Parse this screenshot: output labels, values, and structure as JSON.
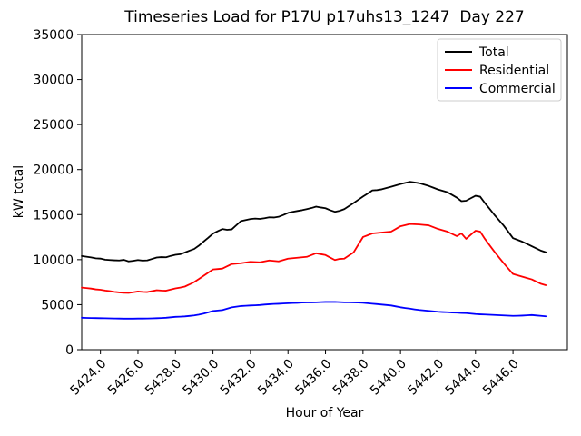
{
  "title": "Timeseries Load for P17U p17uhs13_1247  Day 227",
  "chart_data": {
    "type": "line",
    "title": "Timeseries Load for P17U p17uhs13_1247  Day 227",
    "xlabel": "Hour of Year",
    "ylabel": "kW total",
    "xlim": [
      5423.0,
      5448.9
    ],
    "ylim": [
      0,
      35000
    ],
    "grid": false,
    "legend_position": "upper right",
    "xtick_values": [
      5424,
      5426,
      5428,
      5430,
      5432,
      5434,
      5436,
      5438,
      5440,
      5442,
      5444,
      5446
    ],
    "xtick_labels": [
      "5424.0",
      "5426.0",
      "5428.0",
      "5430.0",
      "5432.0",
      "5434.0",
      "5436.0",
      "5438.0",
      "5440.0",
      "5442.0",
      "5444.0",
      "5446.0"
    ],
    "ytick_values": [
      0,
      5000,
      10000,
      15000,
      20000,
      25000,
      30000,
      35000
    ],
    "ytick_labels": [
      "0",
      "5000",
      "10000",
      "15000",
      "20000",
      "25000",
      "30000",
      "35000"
    ],
    "x": [
      5423.0,
      5423.25,
      5423.5,
      5423.75,
      5424.0,
      5424.25,
      5424.5,
      5424.75,
      5425.0,
      5425.25,
      5425.5,
      5425.75,
      5426.0,
      5426.25,
      5426.5,
      5426.75,
      5427.0,
      5427.25,
      5427.5,
      5427.75,
      5428.0,
      5428.25,
      5428.5,
      5428.75,
      5429.0,
      5429.25,
      5429.5,
      5429.75,
      5430.0,
      5430.25,
      5430.5,
      5430.75,
      5431.0,
      5431.25,
      5431.5,
      5431.75,
      5432.0,
      5432.25,
      5432.5,
      5432.75,
      5433.0,
      5433.25,
      5433.5,
      5433.75,
      5434.0,
      5434.25,
      5434.5,
      5434.75,
      5435.0,
      5435.25,
      5435.5,
      5435.75,
      5436.0,
      5436.25,
      5436.5,
      5436.75,
      5437.0,
      5437.25,
      5437.5,
      5437.75,
      5438.0,
      5438.25,
      5438.5,
      5438.75,
      5439.0,
      5439.25,
      5439.5,
      5439.75,
      5440.0,
      5440.25,
      5440.5,
      5440.75,
      5441.0,
      5441.25,
      5441.5,
      5441.75,
      5442.0,
      5442.25,
      5442.5,
      5442.75,
      5443.0,
      5443.25,
      5443.5,
      5443.75,
      5444.0,
      5444.25,
      5444.5,
      5444.75,
      5445.0,
      5445.25,
      5445.5,
      5445.75,
      5446.0,
      5446.25,
      5446.5,
      5446.75,
      5447.0,
      5447.25,
      5447.5,
      5447.75
    ],
    "series": [
      {
        "name": "Total",
        "color": "#000000",
        "values": [
          10400,
          10330,
          10250,
          10150,
          10120,
          10000,
          9960,
          9930,
          9910,
          9980,
          9810,
          9870,
          9960,
          9900,
          9920,
          10080,
          10240,
          10280,
          10260,
          10420,
          10540,
          10600,
          10790,
          11000,
          11190,
          11560,
          12010,
          12440,
          12890,
          13160,
          13400,
          13310,
          13360,
          13830,
          14290,
          14400,
          14510,
          14560,
          14520,
          14600,
          14700,
          14680,
          14760,
          14960,
          15190,
          15310,
          15400,
          15490,
          15610,
          15730,
          15890,
          15790,
          15710,
          15490,
          15310,
          15420,
          15610,
          15950,
          16290,
          16650,
          17010,
          17340,
          17690,
          17720,
          17810,
          17950,
          18090,
          18240,
          18390,
          18520,
          18640,
          18570,
          18490,
          18340,
          18190,
          17990,
          17790,
          17640,
          17490,
          17190,
          16890,
          16490,
          16540,
          16820,
          17090,
          16990,
          16290,
          15650,
          14990,
          14390,
          13790,
          13090,
          12390,
          12190,
          11990,
          11740,
          11490,
          11240,
          10990,
          10820
        ]
      },
      {
        "name": "Residential",
        "color": "#ff0000",
        "values": [
          6900,
          6850,
          6790,
          6700,
          6660,
          6570,
          6510,
          6420,
          6360,
          6320,
          6310,
          6380,
          6460,
          6420,
          6400,
          6500,
          6610,
          6570,
          6550,
          6680,
          6810,
          6900,
          7010,
          7250,
          7510,
          7850,
          8210,
          8560,
          8910,
          8960,
          9010,
          9260,
          9510,
          9560,
          9610,
          9680,
          9760,
          9730,
          9710,
          9810,
          9910,
          9860,
          9810,
          9960,
          10110,
          10160,
          10210,
          10260,
          10310,
          10510,
          10710,
          10610,
          10510,
          10230,
          9960,
          10080,
          10110,
          10460,
          10810,
          11660,
          12510,
          12710,
          12910,
          12960,
          13010,
          13060,
          13110,
          13410,
          13710,
          13830,
          13960,
          13930,
          13910,
          13860,
          13810,
          13610,
          13410,
          13260,
          13110,
          12860,
          12610,
          12910,
          12310,
          12760,
          13210,
          13110,
          12310,
          11610,
          10910,
          10260,
          9610,
          9010,
          8410,
          8260,
          8110,
          7960,
          7810,
          7560,
          7310,
          7160
        ]
      },
      {
        "name": "Commercial",
        "color": "#0000ff",
        "values": [
          3550,
          3530,
          3520,
          3510,
          3500,
          3490,
          3480,
          3470,
          3460,
          3450,
          3450,
          3450,
          3460,
          3460,
          3470,
          3480,
          3500,
          3520,
          3550,
          3600,
          3650,
          3670,
          3700,
          3750,
          3810,
          3900,
          4010,
          4150,
          4300,
          4350,
          4400,
          4550,
          4700,
          4780,
          4850,
          4880,
          4910,
          4930,
          4960,
          5010,
          5050,
          5080,
          5100,
          5130,
          5160,
          5180,
          5200,
          5230,
          5250,
          5250,
          5260,
          5280,
          5300,
          5300,
          5310,
          5280,
          5260,
          5260,
          5250,
          5230,
          5210,
          5160,
          5110,
          5060,
          5010,
          4960,
          4910,
          4810,
          4710,
          4630,
          4560,
          4480,
          4410,
          4360,
          4310,
          4260,
          4210,
          4180,
          4160,
          4130,
          4110,
          4080,
          4060,
          4010,
          3960,
          3930,
          3910,
          3880,
          3860,
          3830,
          3810,
          3780,
          3760,
          3770,
          3790,
          3820,
          3850,
          3800,
          3760,
          3710
        ]
      }
    ]
  }
}
